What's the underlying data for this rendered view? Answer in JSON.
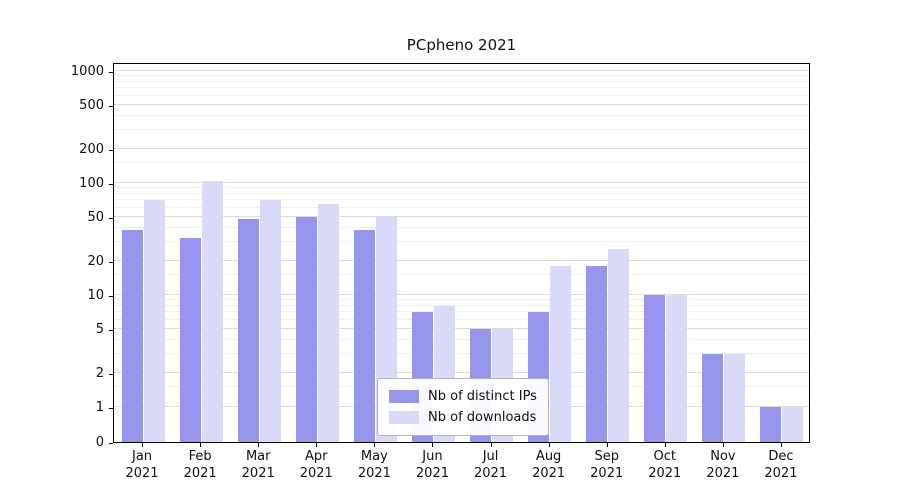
{
  "title": "PCpheno 2021",
  "chart_data": {
    "type": "bar",
    "title": "PCpheno 2021",
    "categories": [
      "Jan 2021",
      "Feb 2021",
      "Mar 2021",
      "Apr 2021",
      "May 2021",
      "Jun 2021",
      "Jul 2021",
      "Aug 2021",
      "Sep 2021",
      "Oct 2021",
      "Nov 2021",
      "Dec 2021"
    ],
    "series": [
      {
        "name": "Nb of distinct IPs",
        "color": "#9595ec",
        "values": [
          38,
          32,
          48,
          50,
          38,
          7,
          5,
          7,
          18,
          10,
          3,
          1
        ]
      },
      {
        "name": "Nb of downloads",
        "color": "#d9d9f8",
        "values": [
          70,
          105,
          70,
          65,
          51,
          8,
          5,
          18,
          26,
          10,
          3,
          1
        ]
      }
    ],
    "xlabel": "",
    "ylabel": "",
    "yticks": [
      0,
      1,
      2,
      5,
      10,
      20,
      50,
      100,
      200,
      500,
      1000
    ],
    "yscale": "symlog",
    "ylim": [
      0,
      1200
    ],
    "grid": true,
    "legend_position": "lower center"
  }
}
